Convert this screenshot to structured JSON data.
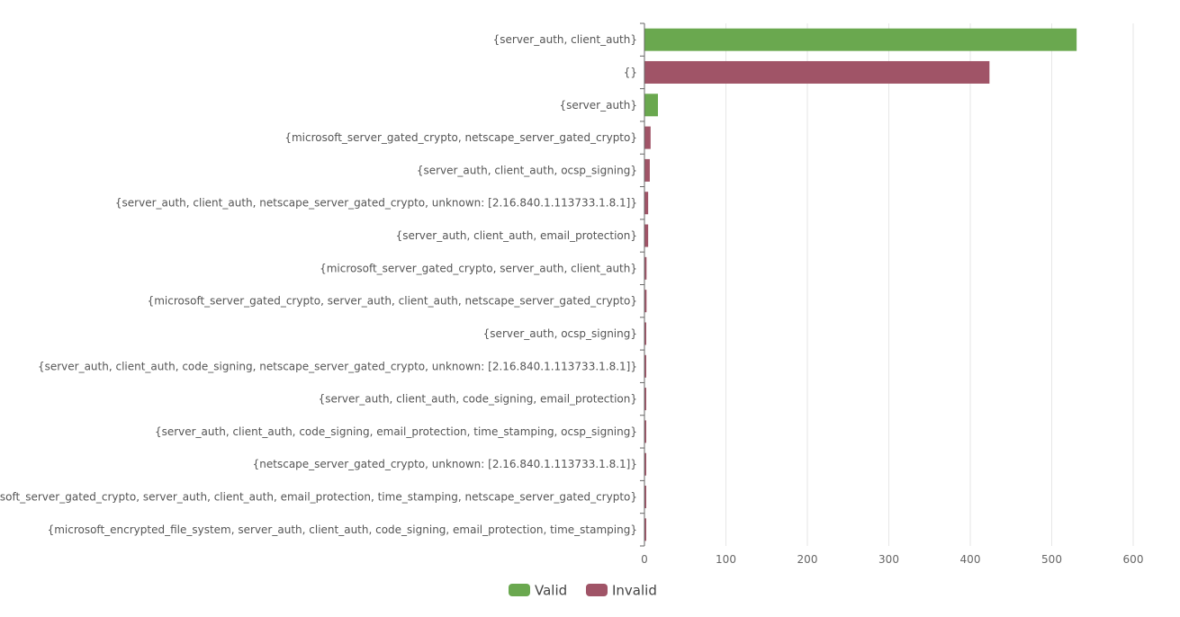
{
  "chart_data": {
    "type": "bar",
    "orientation": "horizontal",
    "title": "",
    "xlabel": "",
    "ylabel": "",
    "xlim": [
      0,
      600
    ],
    "x_ticks": [
      0,
      100,
      200,
      300,
      400,
      500,
      600
    ],
    "grid": "vertical",
    "legend_placement": "bottom-center",
    "series": [
      {
        "name": "Valid",
        "color": "#6aa84f"
      },
      {
        "name": "Invalid",
        "color": "#a05467"
      }
    ],
    "categories": [
      "{server_auth, client_auth}",
      "{}",
      "{server_auth}",
      "{microsoft_server_gated_crypto, netscape_server_gated_crypto}",
      "{server_auth, client_auth, ocsp_signing}",
      "{server_auth, client_auth, netscape_server_gated_crypto, unknown: [2.16.840.1.113733.1.8.1]}",
      "{server_auth, client_auth, email_protection}",
      "{microsoft_server_gated_crypto, server_auth, client_auth}",
      "{microsoft_server_gated_crypto, server_auth, client_auth, netscape_server_gated_crypto}",
      "{server_auth, ocsp_signing}",
      "{server_auth, client_auth, code_signing, netscape_server_gated_crypto, unknown: [2.16.840.1.113733.1.8.1]}",
      "{server_auth, client_auth, code_signing, email_protection}",
      "{server_auth, client_auth, code_signing, email_protection, time_stamping, ocsp_signing}",
      "{netscape_server_gated_crypto, unknown: [2.16.840.1.113733.1.8.1]}",
      "{microsoft_server_gated_crypto, server_auth, client_auth, email_protection, time_stamping, netscape_server_gated_crypto}",
      "{microsoft_encrypted_file_system, server_auth, client_auth, code_signing, email_protection, time_stamping}"
    ],
    "values": [
      530,
      423,
      16,
      7,
      6,
      4,
      4,
      2,
      2,
      1,
      1,
      1,
      1,
      1,
      1,
      1
    ],
    "value_series": [
      "Valid",
      "Invalid",
      "Valid",
      "Invalid",
      "Invalid",
      "Invalid",
      "Invalid",
      "Invalid",
      "Invalid",
      "Invalid",
      "Invalid",
      "Invalid",
      "Invalid",
      "Invalid",
      "Invalid",
      "Invalid"
    ]
  }
}
